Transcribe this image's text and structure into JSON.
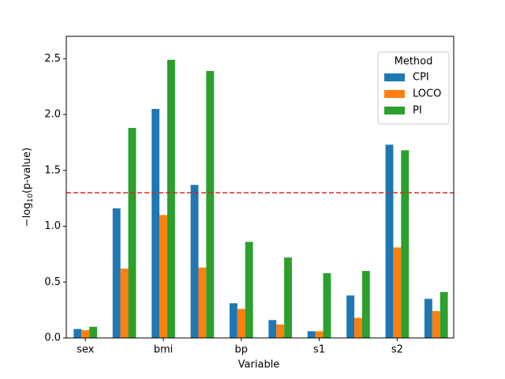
{
  "chart_data": {
    "type": "bar",
    "x_label": "Variable",
    "y_label": {
      "prefix": "−log",
      "subscript": "10",
      "suffix": "(p-value)"
    },
    "categories": [
      "sex",
      null,
      "bmi",
      null,
      "bp",
      null,
      "s1",
      null,
      "s2",
      null
    ],
    "series": [
      {
        "name": "CPI",
        "color": "#1f77b4",
        "values": [
          0.08,
          1.16,
          2.05,
          1.37,
          0.31,
          0.16,
          0.06,
          0.38,
          1.73,
          0.35
        ]
      },
      {
        "name": "LOCO",
        "color": "#ff7f0e",
        "values": [
          0.07,
          0.62,
          1.1,
          0.63,
          0.26,
          0.12,
          0.06,
          0.18,
          0.81,
          0.24
        ]
      },
      {
        "name": "PI",
        "color": "#2ca02c",
        "values": [
          0.1,
          1.88,
          2.49,
          2.39,
          0.86,
          0.72,
          0.58,
          0.6,
          1.68,
          0.41
        ]
      }
    ],
    "threshold": 1.3,
    "threshold_color": "#d62728",
    "ylim": [
      0,
      2.7
    ],
    "yticks": [
      {
        "value": 0,
        "label": "0.0"
      },
      {
        "value": 0.5,
        "label": "0.5"
      },
      {
        "value": 1,
        "label": "1.0"
      },
      {
        "value": 1.5,
        "label": "1.5"
      },
      {
        "value": 2,
        "label": "2.0"
      },
      {
        "value": 2.5,
        "label": "2.5"
      }
    ],
    "legend_title": "Method",
    "legend_position": "upper right",
    "grid": false
  }
}
